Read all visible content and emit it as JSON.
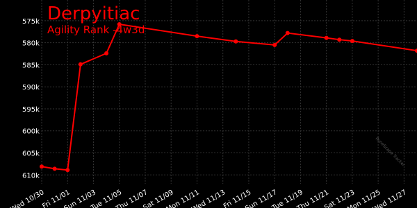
{
  "chart_data": {
    "type": "line",
    "title": "Derpyitiac",
    "subtitle": "Agility Rank -4w3d",
    "watermark": "RuneScape Tracker",
    "x": [
      "10/30",
      "10/31",
      "11/01",
      "11/02",
      "11/04",
      "11/05",
      "11/11",
      "11/14",
      "11/17",
      "11/18",
      "11/21",
      "11/22",
      "11/23",
      "11/28"
    ],
    "series": [
      {
        "name": "Agility Rank",
        "color": "#ff0000",
        "values": [
          608100,
          608600,
          608900,
          584900,
          582400,
          575800,
          578500,
          579700,
          580500,
          577800,
          578900,
          579300,
          579600,
          581800
        ]
      }
    ],
    "xlim": [
      "10/30",
      "11/28"
    ],
    "xticks": [
      {
        "value": "10/30",
        "label": "Wed 10/30"
      },
      {
        "value": "11/01",
        "label": "Fri 11/01"
      },
      {
        "value": "11/03",
        "label": "Sun 11/03"
      },
      {
        "value": "11/05",
        "label": "Tue 11/05"
      },
      {
        "value": "11/07",
        "label": "Thu 11/07"
      },
      {
        "value": "11/09",
        "label": "Sat 11/09"
      },
      {
        "value": "11/11",
        "label": "Mon 11/11"
      },
      {
        "value": "11/13",
        "label": "Wed 11/13"
      },
      {
        "value": "11/15",
        "label": "Fri 11/15"
      },
      {
        "value": "11/17",
        "label": "Sun 11/17"
      },
      {
        "value": "11/19",
        "label": "Tue 11/19"
      },
      {
        "value": "11/21",
        "label": "Thu 11/21"
      },
      {
        "value": "11/23",
        "label": "Sat 11/23"
      },
      {
        "value": "11/25",
        "label": "Mon 11/25"
      },
      {
        "value": "11/27",
        "label": "Wed 11/27"
      }
    ],
    "ylim": [
      612000,
      570300
    ],
    "yticks": [
      {
        "value": 575000,
        "label": "575k"
      },
      {
        "value": 580000,
        "label": "580k"
      },
      {
        "value": 585000,
        "label": "585k"
      },
      {
        "value": 590000,
        "label": "590k"
      },
      {
        "value": 595000,
        "label": "595k"
      },
      {
        "value": 600000,
        "label": "600k"
      },
      {
        "value": 605000,
        "label": "605k"
      },
      {
        "value": 610000,
        "label": "610k"
      }
    ],
    "grid": true
  }
}
